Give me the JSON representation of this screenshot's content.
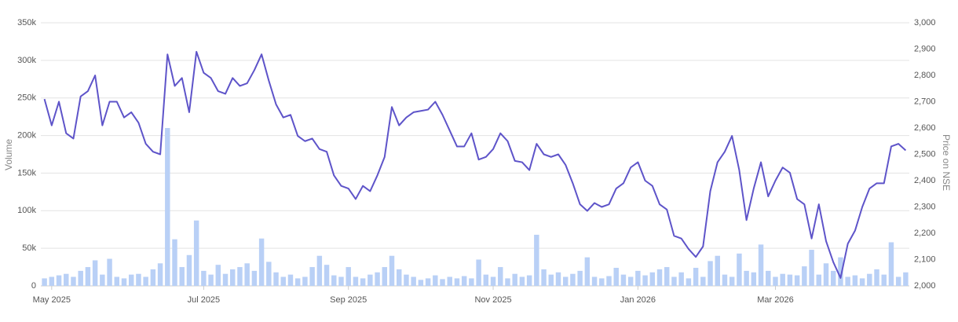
{
  "chart_data": {
    "type": "combo",
    "ylabel": "Volume",
    "y2label": "Price on NSE",
    "categories": [
      null,
      "May 2025",
      null,
      null,
      null,
      null,
      null,
      null,
      null,
      null,
      null,
      null,
      null,
      null,
      null,
      null,
      null,
      null,
      null,
      null,
      null,
      null,
      "Jul 2025",
      null,
      null,
      null,
      null,
      null,
      null,
      null,
      null,
      null,
      null,
      null,
      null,
      null,
      null,
      null,
      null,
      null,
      null,
      null,
      "Sep 2025",
      null,
      null,
      null,
      null,
      null,
      null,
      null,
      null,
      null,
      null,
      null,
      null,
      null,
      null,
      null,
      null,
      null,
      null,
      null,
      "Nov 2025",
      null,
      null,
      null,
      null,
      null,
      null,
      null,
      null,
      null,
      null,
      null,
      null,
      null,
      null,
      null,
      null,
      null,
      null,
      null,
      "Jan 2026",
      null,
      null,
      null,
      null,
      null,
      null,
      null,
      null,
      null,
      null,
      null,
      null,
      null,
      null,
      null,
      null,
      null,
      null,
      "Mar 2026",
      null,
      null,
      null,
      null,
      null,
      null,
      null,
      null,
      null,
      null,
      null,
      null,
      null,
      null,
      null,
      null,
      null,
      null
    ],
    "series": [
      {
        "type": "bar",
        "color": "#b9d0f6",
        "values": [
          10000,
          12000,
          14000,
          16000,
          12000,
          20000,
          25000,
          34000,
          15000,
          36000,
          12000,
          10000,
          15000,
          16000,
          12000,
          22000,
          30000,
          210000,
          62000,
          25000,
          41000,
          87000,
          20000,
          15000,
          28000,
          16000,
          22000,
          25000,
          30000,
          20000,
          63000,
          32000,
          18000,
          12000,
          15000,
          10000,
          12000,
          25000,
          40000,
          28000,
          14000,
          12000,
          25000,
          12000,
          10000,
          15000,
          18000,
          25000,
          40000,
          22000,
          15000,
          12000,
          8000,
          10000,
          14000,
          9000,
          12000,
          10000,
          13000,
          10000,
          35000,
          15000,
          12000,
          25000,
          10000,
          16000,
          12000,
          14000,
          68000,
          22000,
          15000,
          18000,
          12000,
          16000,
          20000,
          38000,
          12000,
          10000,
          13000,
          24000,
          15000,
          12000,
          20000,
          14000,
          18000,
          22000,
          25000,
          12000,
          18000,
          10000,
          24000,
          12000,
          33000,
          40000,
          15000,
          12000,
          43000,
          20000,
          18000,
          55000,
          20000,
          12000,
          16000,
          15000,
          14000,
          26000,
          48000,
          15000,
          30000,
          20000,
          38000,
          12000,
          14000,
          10000,
          16000,
          22000,
          15000,
          58000,
          12000,
          18000
        ]
      },
      {
        "type": "line",
        "axis": "y2",
        "color": "#5e54c9",
        "values": [
          2710,
          2610,
          2700,
          2580,
          2560,
          2720,
          2740,
          2800,
          2610,
          2700,
          2700,
          2640,
          2660,
          2620,
          2540,
          2510,
          2500,
          2880,
          2760,
          2790,
          2660,
          2890,
          2810,
          2790,
          2740,
          2730,
          2790,
          2760,
          2770,
          2820,
          2880,
          2780,
          2690,
          2640,
          2650,
          2570,
          2550,
          2560,
          2520,
          2510,
          2420,
          2380,
          2370,
          2330,
          2380,
          2360,
          2420,
          2490,
          2680,
          2610,
          2640,
          2660,
          2665,
          2670,
          2700,
          2650,
          2590,
          2530,
          2530,
          2580,
          2480,
          2490,
          2520,
          2580,
          2550,
          2475,
          2470,
          2440,
          2540,
          2500,
          2490,
          2500,
          2460,
          2390,
          2310,
          2285,
          2315,
          2300,
          2310,
          2370,
          2390,
          2450,
          2470,
          2400,
          2380,
          2310,
          2290,
          2190,
          2180,
          2140,
          2110,
          2150,
          2360,
          2470,
          2510,
          2570,
          2440,
          2250,
          2370,
          2470,
          2340,
          2400,
          2450,
          2430,
          2330,
          2310,
          2180,
          2310,
          2170,
          2090,
          2030,
          2160,
          2210,
          2300,
          2370,
          2390,
          2390,
          2530,
          2540,
          2515
        ]
      }
    ],
    "ylim": [
      0,
      350000
    ],
    "yticks": [
      0,
      {
        "value": 50000,
        "label": "50k"
      },
      {
        "value": 100000,
        "label": "100k"
      },
      {
        "value": 150000,
        "label": "150k"
      },
      {
        "value": 200000,
        "label": "200k"
      },
      {
        "value": 250000,
        "label": "250k"
      },
      {
        "value": 300000,
        "label": "300k"
      },
      {
        "value": 350000,
        "label": "350k"
      }
    ],
    "y2lim": [
      2000,
      3000
    ],
    "y2ticks": [
      {
        "value": 2000,
        "label": "2,000"
      },
      {
        "value": 2100,
        "label": "2,100"
      },
      {
        "value": 2200,
        "label": "2,200"
      },
      {
        "value": 2300,
        "label": "2,300"
      },
      {
        "value": 2400,
        "label": "2,400"
      },
      {
        "value": 2500,
        "label": "2,500"
      },
      {
        "value": 2600,
        "label": "2,600"
      },
      {
        "value": 2700,
        "label": "2,700"
      },
      {
        "value": 2800,
        "label": "2,800"
      },
      {
        "value": 2900,
        "label": "2,900"
      },
      {
        "value": 3000,
        "label": "3,000"
      }
    ],
    "grid": true
  }
}
